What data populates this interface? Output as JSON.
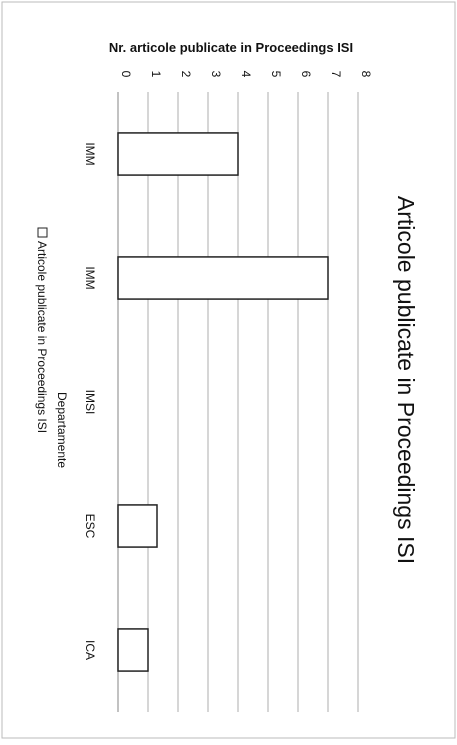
{
  "chart_data": {
    "type": "bar",
    "title": "Articole publicate in Proceedings ISI",
    "xlabel": "Departamente",
    "ylabel": "Nr. articole publicate in Proceedings ISI",
    "categories": [
      "IMM",
      "IMM",
      "IMSI",
      "ESC",
      "ICA"
    ],
    "series": [
      {
        "name": "Articole publicate in Proceedings ISI",
        "values": [
          4,
          7,
          0,
          1.3,
          1
        ]
      }
    ],
    "ylim": [
      0,
      8
    ],
    "yticks": [
      "0",
      "1",
      "2",
      "3",
      "4",
      "5",
      "6",
      "7",
      "8"
    ],
    "grid": true,
    "legend": "bottom",
    "orientation": "rotated-90",
    "colors": {
      "bar_fill": "#ffffff",
      "bar_stroke": "#222222",
      "grid": "#9a9a9a",
      "frame": "#bbbbbb"
    }
  }
}
